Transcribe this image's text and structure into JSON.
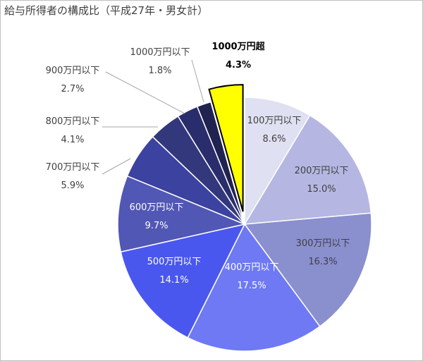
{
  "chart_data": {
    "type": "pie",
    "title": "給与所得者の構成比（平成27年・男女計）",
    "start_angle_deg": 0,
    "direction": "clockwise",
    "slices": [
      {
        "label": "100万円以下",
        "value": 8.6,
        "value_label": "8.6%",
        "color": "#dfe0f1"
      },
      {
        "label": "200万円以下",
        "value": 15.0,
        "value_label": "15.0%",
        "color": "#b5b7e2"
      },
      {
        "label": "300万円以下",
        "value": 16.3,
        "value_label": "16.3%",
        "color": "#8a8fce"
      },
      {
        "label": "400万円以下",
        "value": 17.5,
        "value_label": "17.5%",
        "color": "#6e79f3"
      },
      {
        "label": "500万円以下",
        "value": 14.1,
        "value_label": "14.1%",
        "color": "#4a57ee"
      },
      {
        "label": "600万円以下",
        "value": 9.7,
        "value_label": "9.7%",
        "color": "#5157b4"
      },
      {
        "label": "700万円以下",
        "value": 5.9,
        "value_label": "5.9%",
        "color": "#3c42a0"
      },
      {
        "label": "800万円以下",
        "value": 4.1,
        "value_label": "4.1%",
        "color": "#33387c"
      },
      {
        "label": "900万円以下",
        "value": 2.7,
        "value_label": "2.7%",
        "color": "#2a2d6b"
      },
      {
        "label": "1000万円以下",
        "value": 1.8,
        "value_label": "1.8%",
        "color": "#20224f"
      },
      {
        "label": "1000万円超",
        "value": 4.3,
        "value_label": "4.3%",
        "color": "#ffff00",
        "highlight": true
      }
    ]
  }
}
